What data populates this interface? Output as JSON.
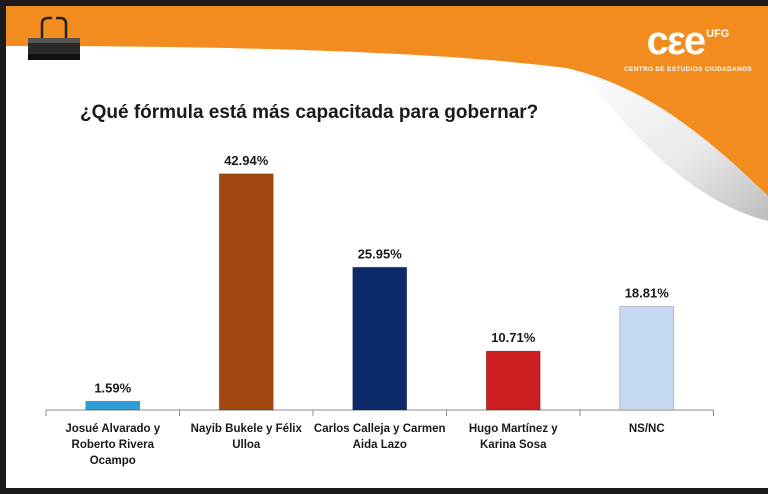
{
  "header": {
    "logo_mark": "cεe",
    "logo_suffix": "UFG",
    "logo_name": "CENTRO DE ESTUDIOS CIUDADANOS"
  },
  "icons": {
    "clip": "binder-clip-icon"
  },
  "colors": {
    "header_orange": "#F28C1E",
    "header_orange_dark": "#E6781A"
  },
  "chart_data": {
    "type": "bar",
    "title": "¿Qué fórmula está más capacitada para gobernar?",
    "categories": [
      [
        "Josué Alvarado y",
        "Roberto Rivera",
        "Ocampo"
      ],
      [
        "Nayib Bukele y Félix",
        "Ulloa"
      ],
      [
        "Carlos Calleja y Carmen",
        "Aida Lazo"
      ],
      [
        "Hugo Martínez y",
        "Karina Sosa"
      ],
      [
        "NS/NC"
      ]
    ],
    "values": [
      1.59,
      42.94,
      25.95,
      10.71,
      18.81
    ],
    "value_labels": [
      "1.59%",
      "42.94%",
      "25.95%",
      "10.71%",
      "18.81%"
    ],
    "colors": [
      "#2E9ED8",
      "#A0480F",
      "#0D2A6B",
      "#CC1E1E",
      "#C5D9F1"
    ],
    "ylim": [
      0,
      48
    ],
    "grid": false,
    "legend": "none"
  }
}
